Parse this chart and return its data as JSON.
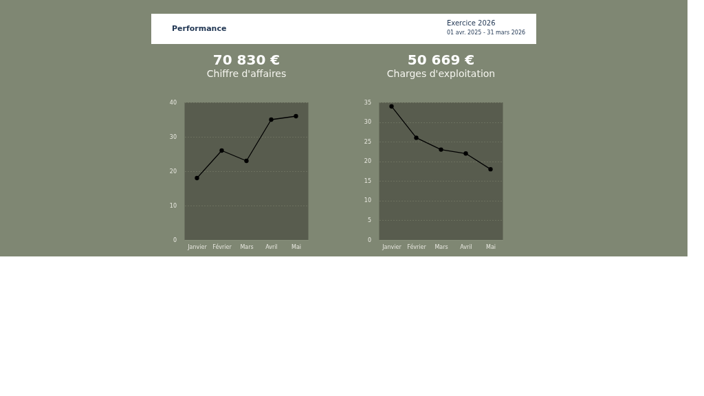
{
  "chart_data": [
    {
      "type": "other",
      "title": "Performance",
      "annotations": [
        "Exercice 2026",
        "01 avr. 2025 - 31 mars 2026"
      ]
    },
    {
      "type": "line",
      "title": "70 830 €",
      "subtitle": "Chiffre d'affaires",
      "categories": [
        "Janvier",
        "Février",
        "Mars",
        "Avril",
        "Mai"
      ],
      "series": [
        {
          "color": "#000000",
          "values": [
            18,
            26,
            23,
            35,
            36
          ]
        }
      ],
      "ylim": [
        0,
        40
      ],
      "yticks": [
        0,
        10,
        20,
        30,
        40
      ],
      "grid": "y",
      "marker": "circle",
      "line_style": "solid"
    },
    {
      "type": "line",
      "title": "50 669 €",
      "subtitle": "Charges d'exploitation",
      "categories": [
        "Janvier",
        "Février",
        "Mars",
        "Avril",
        "Mai"
      ],
      "series": [
        {
          "color": "#000000",
          "values": [
            34,
            26,
            23,
            22,
            18
          ]
        }
      ],
      "ylim": [
        0,
        35
      ],
      "yticks": [
        0,
        5,
        10,
        15,
        20,
        25,
        30,
        35
      ],
      "grid": "y",
      "marker": "circle",
      "line_style": "solid"
    }
  ]
}
